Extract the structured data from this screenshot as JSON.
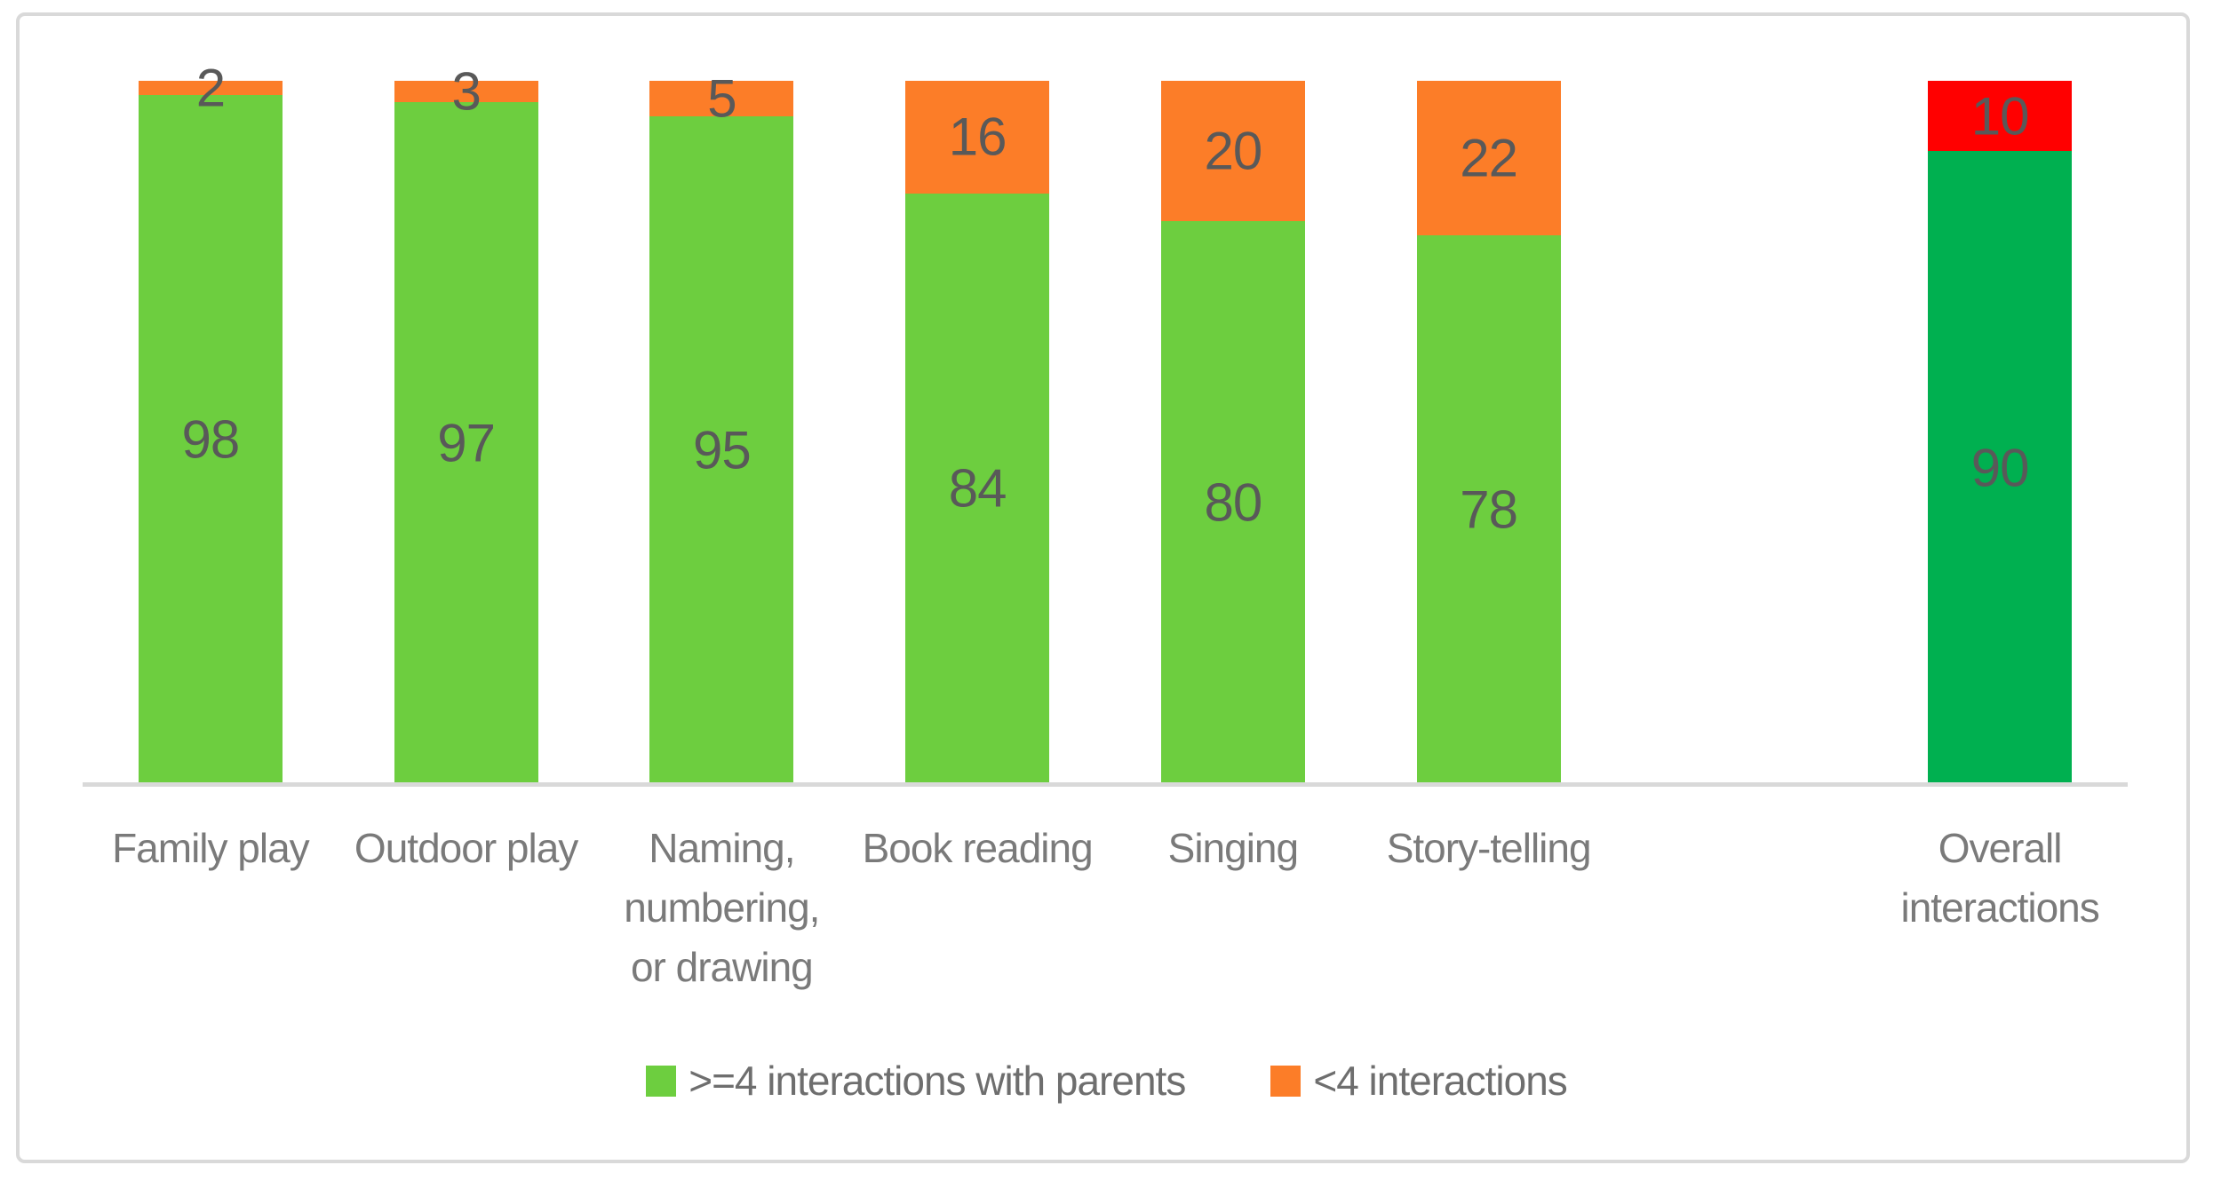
{
  "chart_data": {
    "type": "bar",
    "stacked": true,
    "title": "",
    "xlabel": "",
    "ylabel": "",
    "ylim": [
      0,
      100
    ],
    "grid": false,
    "axes_ticks_visible": false,
    "legend_position": "bottom-center",
    "slots": 8,
    "series_legend": [
      {
        "name": ">=4 interactions with parents",
        "color": "#6DCE3F"
      },
      {
        "name": "<4 interactions",
        "color": "#FC7D28"
      }
    ],
    "bars": [
      {
        "slot": 0,
        "label_lines": [
          "Family play"
        ],
        "segments": [
          {
            "value": 98,
            "color": "#6DCE3F"
          },
          {
            "value": 2,
            "color": "#FC7D28"
          }
        ]
      },
      {
        "slot": 1,
        "label_lines": [
          "Outdoor play"
        ],
        "segments": [
          {
            "value": 97,
            "color": "#6DCE3F"
          },
          {
            "value": 3,
            "color": "#FC7D28"
          }
        ]
      },
      {
        "slot": 2,
        "label_lines": [
          "Naming,",
          "numbering,",
          "or drawing"
        ],
        "segments": [
          {
            "value": 95,
            "color": "#6DCE3F"
          },
          {
            "value": 5,
            "color": "#FC7D28"
          }
        ]
      },
      {
        "slot": 3,
        "label_lines": [
          "Book reading"
        ],
        "segments": [
          {
            "value": 84,
            "color": "#6DCE3F"
          },
          {
            "value": 16,
            "color": "#FC7D28"
          }
        ]
      },
      {
        "slot": 4,
        "label_lines": [
          "Singing"
        ],
        "segments": [
          {
            "value": 80,
            "color": "#6DCE3F"
          },
          {
            "value": 20,
            "color": "#FC7D28"
          }
        ]
      },
      {
        "slot": 5,
        "label_lines": [
          "Story-telling"
        ],
        "segments": [
          {
            "value": 78,
            "color": "#6DCE3F"
          },
          {
            "value": 22,
            "color": "#FC7D28"
          }
        ]
      },
      {
        "slot": 7,
        "label_lines": [
          "Overall",
          "interactions"
        ],
        "segments": [
          {
            "value": 90,
            "color": "#00B050"
          },
          {
            "value": 10,
            "color": "#FF0000"
          }
        ]
      }
    ],
    "colors": {
      "bright_green": "#6DCE3F",
      "orange": "#FC7D28",
      "dark_green": "#00B050",
      "red": "#FF0000",
      "data_label_text": "#595959",
      "axis_label_text": "#7A7A7A",
      "axis_line": "#D9D9D9",
      "frame_border": "#D9D9D9"
    }
  }
}
